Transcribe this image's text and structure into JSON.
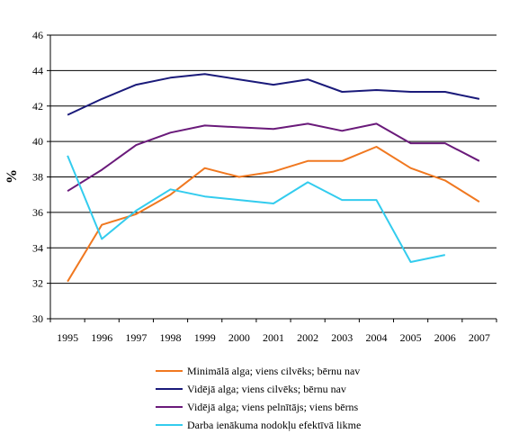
{
  "chart_data": {
    "type": "line",
    "title": "",
    "xlabel": "",
    "ylabel": "%",
    "ylim": [
      30,
      46
    ],
    "yticks": [
      "30",
      "32",
      "34",
      "36",
      "38",
      "40",
      "42",
      "44",
      "46"
    ],
    "categories": [
      "1995",
      "1996",
      "1997",
      "1998",
      "1999",
      "2000",
      "2001",
      "2002",
      "2003",
      "2004",
      "2005",
      "2006",
      "2007"
    ],
    "grid": "horizontal",
    "legend_position": "bottom",
    "series": [
      {
        "name": "Minimālā alga; viens cilvēks; bērnu nav",
        "color": "#F07820",
        "values": [
          32.1,
          35.3,
          35.9,
          37.0,
          38.5,
          38.0,
          38.3,
          38.9,
          38.9,
          39.7,
          38.5,
          37.8,
          36.6
        ]
      },
      {
        "name": "Vidējā alga; viens cilvēks; bērnu nav",
        "color": "#1A1A7A",
        "values": [
          41.5,
          42.4,
          43.2,
          43.6,
          43.8,
          43.5,
          43.2,
          43.5,
          42.8,
          42.9,
          42.8,
          42.8,
          42.4
        ]
      },
      {
        "name": "Vidējā alga; viens pelnītājs; viens bērns",
        "color": "#6A1A7A",
        "values": [
          37.2,
          38.4,
          39.8,
          40.5,
          40.9,
          40.8,
          40.7,
          41.0,
          40.6,
          41.0,
          39.9,
          39.9,
          38.9
        ]
      },
      {
        "name": "Darba ienākuma nodokļu efektīvā likme",
        "color": "#33CCEE",
        "values": [
          39.2,
          34.5,
          36.1,
          37.3,
          36.9,
          36.7,
          36.5,
          37.7,
          36.7,
          36.7,
          33.2,
          33.6,
          null
        ]
      }
    ]
  }
}
